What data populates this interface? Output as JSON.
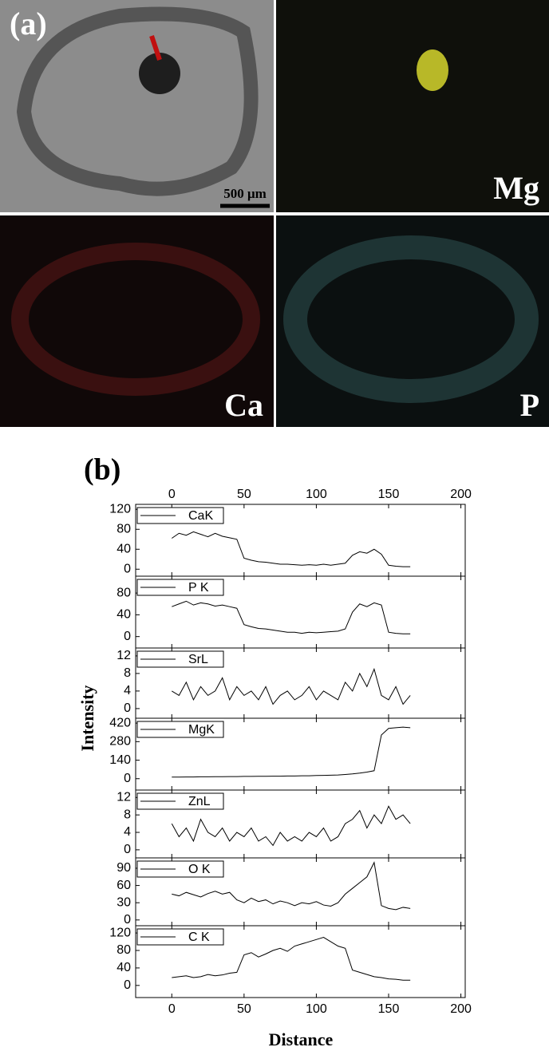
{
  "panel_a": {
    "label": "(a)",
    "scale_bar": "500 μm",
    "maps": [
      "Mg",
      "Ca",
      "P"
    ]
  },
  "panel_b": {
    "label": "(b)",
    "ylabel": "Intensity",
    "xlabel": "Distance"
  },
  "chart_data": [
    {
      "type": "line",
      "x": [
        0,
        5,
        10,
        15,
        20,
        25,
        30,
        35,
        40,
        45,
        50,
        55,
        60,
        65,
        70,
        75,
        80,
        85,
        90,
        95,
        100,
        105,
        110,
        115,
        120,
        125,
        130,
        135,
        140,
        145,
        150,
        155,
        160,
        165
      ],
      "xlim": [
        -25,
        203
      ],
      "xticks": [
        0,
        50,
        100,
        150,
        200
      ],
      "ylim": [
        -14,
        130
      ],
      "yticks": [
        0,
        40,
        80,
        120
      ],
      "series": [
        {
          "name": "CaK",
          "color": "#000000",
          "values": [
            62,
            72,
            68,
            75,
            70,
            65,
            72,
            66,
            63,
            60,
            22,
            18,
            15,
            14,
            12,
            10,
            10,
            9,
            8,
            9,
            8,
            10,
            8,
            10,
            12,
            28,
            35,
            32,
            40,
            30,
            8,
            6,
            5,
            5
          ]
        }
      ]
    },
    {
      "type": "line",
      "x": [
        0,
        5,
        10,
        15,
        20,
        25,
        30,
        35,
        40,
        45,
        50,
        55,
        60,
        65,
        70,
        75,
        80,
        85,
        90,
        95,
        100,
        105,
        110,
        115,
        120,
        125,
        130,
        135,
        140,
        145,
        150,
        155,
        160,
        165
      ],
      "xlim": [
        -25,
        203
      ],
      "xticks": [
        0,
        50,
        100,
        150,
        200
      ],
      "ylim": [
        -21,
        111
      ],
      "yticks": [
        0,
        40,
        80
      ],
      "series": [
        {
          "name": "P K",
          "color": "#000000",
          "values": [
            55,
            60,
            65,
            58,
            62,
            60,
            56,
            58,
            55,
            52,
            22,
            18,
            15,
            14,
            12,
            10,
            8,
            8,
            6,
            8,
            7,
            8,
            9,
            10,
            14,
            45,
            60,
            55,
            62,
            58,
            8,
            6,
            5,
            5
          ]
        }
      ]
    },
    {
      "type": "line",
      "x": [
        0,
        5,
        10,
        15,
        20,
        25,
        30,
        35,
        40,
        45,
        50,
        55,
        60,
        65,
        70,
        75,
        80,
        85,
        90,
        95,
        100,
        105,
        110,
        115,
        120,
        125,
        130,
        135,
        140,
        145,
        150,
        155,
        160,
        165
      ],
      "xlim": [
        -25,
        203
      ],
      "xticks": [
        0,
        50,
        100,
        150,
        200
      ],
      "ylim": [
        -2.2,
        13.8
      ],
      "yticks": [
        0,
        4,
        8,
        12
      ],
      "series": [
        {
          "name": "SrL",
          "color": "#000000",
          "values": [
            4,
            3,
            6,
            2,
            5,
            3,
            4,
            7,
            2,
            5,
            3,
            4,
            2,
            5,
            1,
            3,
            4,
            2,
            3,
            5,
            2,
            4,
            3,
            2,
            6,
            4,
            8,
            5,
            9,
            3,
            2,
            5,
            1,
            3
          ]
        }
      ]
    },
    {
      "type": "line",
      "x": [
        0,
        5,
        10,
        15,
        20,
        25,
        30,
        35,
        40,
        45,
        50,
        55,
        60,
        65,
        70,
        75,
        80,
        85,
        90,
        95,
        100,
        105,
        110,
        115,
        120,
        125,
        130,
        135,
        140,
        145,
        150,
        155,
        160,
        165
      ],
      "xlim": [
        -25,
        203
      ],
      "xticks": [
        0,
        50,
        100,
        150,
        200
      ],
      "ylim": [
        -86,
        457
      ],
      "yticks": [
        0,
        140,
        280,
        420
      ],
      "series": [
        {
          "name": "MgK",
          "color": "#000000",
          "values": [
            12,
            12,
            13,
            13,
            14,
            14,
            15,
            15,
            16,
            16,
            17,
            17,
            18,
            18,
            19,
            19,
            20,
            20,
            22,
            22,
            24,
            25,
            26,
            28,
            32,
            36,
            42,
            50,
            60,
            330,
            380,
            385,
            390,
            385
          ]
        }
      ]
    },
    {
      "type": "line",
      "x": [
        0,
        5,
        10,
        15,
        20,
        25,
        30,
        35,
        40,
        45,
        50,
        55,
        60,
        65,
        70,
        75,
        80,
        85,
        90,
        95,
        100,
        105,
        110,
        115,
        120,
        125,
        130,
        135,
        140,
        145,
        150,
        155,
        160,
        165
      ],
      "xlim": [
        -25,
        203
      ],
      "xticks": [
        0,
        50,
        100,
        150,
        200
      ],
      "ylim": [
        -1.85,
        13.7
      ],
      "yticks": [
        0,
        4,
        8,
        12
      ],
      "series": [
        {
          "name": "ZnL",
          "color": "#000000",
          "values": [
            6,
            3,
            5,
            2,
            7,
            4,
            3,
            5,
            2,
            4,
            3,
            5,
            2,
            3,
            1,
            4,
            2,
            3,
            2,
            4,
            3,
            5,
            2,
            3,
            6,
            7,
            9,
            5,
            8,
            6,
            10,
            7,
            8,
            6
          ]
        }
      ]
    },
    {
      "type": "line",
      "x": [
        0,
        5,
        10,
        15,
        20,
        25,
        30,
        35,
        40,
        45,
        50,
        55,
        60,
        65,
        70,
        75,
        80,
        85,
        90,
        95,
        100,
        105,
        110,
        115,
        120,
        125,
        130,
        135,
        140,
        145,
        150,
        155,
        160,
        165
      ],
      "xlim": [
        -25,
        203
      ],
      "xticks": [
        0,
        50,
        100,
        150,
        200
      ],
      "ylim": [
        -10,
        108
      ],
      "yticks": [
        0,
        30,
        60,
        90
      ],
      "series": [
        {
          "name": "O K",
          "color": "#000000",
          "values": [
            45,
            42,
            48,
            44,
            40,
            46,
            50,
            45,
            48,
            35,
            30,
            38,
            32,
            35,
            28,
            33,
            30,
            25,
            30,
            28,
            32,
            26,
            24,
            30,
            45,
            55,
            65,
            75,
            100,
            25,
            20,
            18,
            22,
            20
          ]
        }
      ]
    },
    {
      "type": "line",
      "x": [
        0,
        5,
        10,
        15,
        20,
        25,
        30,
        35,
        40,
        45,
        50,
        55,
        60,
        65,
        70,
        75,
        80,
        85,
        90,
        95,
        100,
        105,
        110,
        115,
        120,
        125,
        130,
        135,
        140,
        145,
        150,
        155,
        160,
        165
      ],
      "xlim": [
        -25,
        203
      ],
      "xticks": [
        0,
        50,
        100,
        150,
        200
      ],
      "ylim": [
        -27.7,
        136.6
      ],
      "yticks": [
        0,
        40,
        80,
        120
      ],
      "series": [
        {
          "name": "C K",
          "color": "#000000",
          "values": [
            18,
            20,
            22,
            18,
            20,
            25,
            22,
            24,
            28,
            30,
            70,
            75,
            65,
            72,
            80,
            85,
            78,
            90,
            95,
            100,
            105,
            110,
            100,
            90,
            85,
            35,
            30,
            25,
            20,
            18,
            15,
            14,
            12,
            12
          ]
        }
      ]
    }
  ]
}
